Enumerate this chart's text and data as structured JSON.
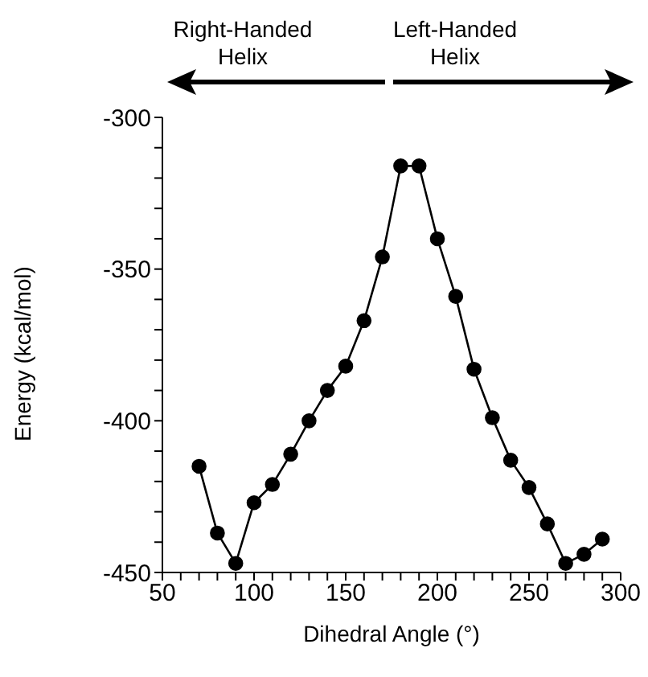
{
  "chart_data": {
    "type": "line",
    "xlabel": "Dihedral Angle (°)",
    "ylabel": "Energy (kcal/mol)",
    "x": [
      70,
      80,
      90,
      100,
      110,
      120,
      130,
      140,
      150,
      160,
      170,
      180,
      190,
      200,
      210,
      220,
      230,
      240,
      250,
      260,
      270,
      280,
      290
    ],
    "series": [
      {
        "color": "#000000",
        "values": [
          -415,
          -437,
          -447,
          -427,
          -421,
          -411,
          -400,
          -390,
          -382,
          -367,
          -346,
          -316,
          -316,
          -340,
          -359,
          -383,
          -399,
          -413,
          -422,
          -434,
          -447,
          -444,
          -439
        ]
      }
    ],
    "xlim": [
      50,
      300
    ],
    "xticks": [
      50,
      {
        "value": 60,
        "label": null
      },
      {
        "value": 70,
        "label": null
      },
      {
        "value": 80,
        "label": null
      },
      {
        "value": 90,
        "label": null
      },
      100,
      {
        "value": 110,
        "label": null
      },
      {
        "value": 120,
        "label": null
      },
      {
        "value": 130,
        "label": null
      },
      {
        "value": 140,
        "label": null
      },
      150,
      {
        "value": 160,
        "label": null
      },
      {
        "value": 170,
        "label": null
      },
      {
        "value": 180,
        "label": null
      },
      {
        "value": 190,
        "label": null
      },
      200,
      {
        "value": 210,
        "label": null
      },
      {
        "value": 220,
        "label": null
      },
      {
        "value": 230,
        "label": null
      },
      {
        "value": 240,
        "label": null
      },
      250,
      {
        "value": 260,
        "label": null
      },
      {
        "value": 270,
        "label": null
      },
      {
        "value": 280,
        "label": null
      },
      {
        "value": 290,
        "label": null
      },
      300
    ],
    "ylim": [
      -450,
      -300
    ],
    "yticks": [
      -450,
      {
        "value": -440,
        "label": null
      },
      {
        "value": -430,
        "label": null
      },
      {
        "value": -420,
        "label": null
      },
      {
        "value": -410,
        "label": null
      },
      -400,
      {
        "value": -390,
        "label": null
      },
      {
        "value": -380,
        "label": null
      },
      {
        "value": -370,
        "label": null
      },
      {
        "value": -360,
        "label": null
      },
      -350,
      {
        "value": -340,
        "label": null
      },
      {
        "value": -330,
        "label": null
      },
      {
        "value": -320,
        "label": null
      },
      {
        "value": -310,
        "label": null
      },
      -300
    ],
    "annotations": [
      "Right-Handed Helix",
      "Left-Handed Helix"
    ],
    "marker": "circle",
    "line_style": "solid",
    "grid": false,
    "legend": false
  }
}
